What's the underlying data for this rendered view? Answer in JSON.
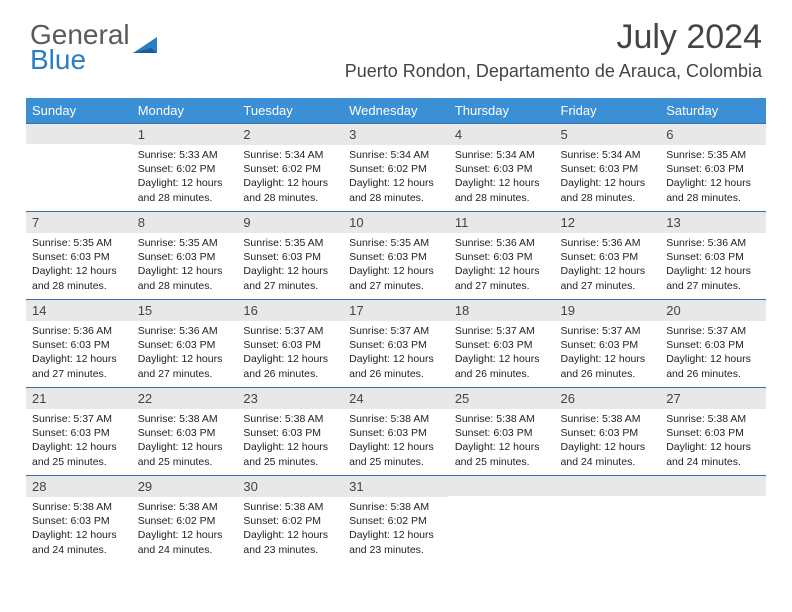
{
  "logo": {
    "text1": "General",
    "text2": "Blue"
  },
  "title": "July 2024",
  "location": "Puerto Rondon, Departamento de Arauca, Colombia",
  "colors": {
    "header_bg": "#3b8fd4",
    "daynum_bg": "#e8e8e8",
    "border": "#3b6fa5",
    "text": "#222222"
  },
  "day_headers": [
    "Sunday",
    "Monday",
    "Tuesday",
    "Wednesday",
    "Thursday",
    "Friday",
    "Saturday"
  ],
  "weeks": [
    [
      {
        "num": "",
        "sunrise": "",
        "sunset": "",
        "daylight": ""
      },
      {
        "num": "1",
        "sunrise": "Sunrise: 5:33 AM",
        "sunset": "Sunset: 6:02 PM",
        "daylight": "Daylight: 12 hours and 28 minutes."
      },
      {
        "num": "2",
        "sunrise": "Sunrise: 5:34 AM",
        "sunset": "Sunset: 6:02 PM",
        "daylight": "Daylight: 12 hours and 28 minutes."
      },
      {
        "num": "3",
        "sunrise": "Sunrise: 5:34 AM",
        "sunset": "Sunset: 6:02 PM",
        "daylight": "Daylight: 12 hours and 28 minutes."
      },
      {
        "num": "4",
        "sunrise": "Sunrise: 5:34 AM",
        "sunset": "Sunset: 6:03 PM",
        "daylight": "Daylight: 12 hours and 28 minutes."
      },
      {
        "num": "5",
        "sunrise": "Sunrise: 5:34 AM",
        "sunset": "Sunset: 6:03 PM",
        "daylight": "Daylight: 12 hours and 28 minutes."
      },
      {
        "num": "6",
        "sunrise": "Sunrise: 5:35 AM",
        "sunset": "Sunset: 6:03 PM",
        "daylight": "Daylight: 12 hours and 28 minutes."
      }
    ],
    [
      {
        "num": "7",
        "sunrise": "Sunrise: 5:35 AM",
        "sunset": "Sunset: 6:03 PM",
        "daylight": "Daylight: 12 hours and 28 minutes."
      },
      {
        "num": "8",
        "sunrise": "Sunrise: 5:35 AM",
        "sunset": "Sunset: 6:03 PM",
        "daylight": "Daylight: 12 hours and 28 minutes."
      },
      {
        "num": "9",
        "sunrise": "Sunrise: 5:35 AM",
        "sunset": "Sunset: 6:03 PM",
        "daylight": "Daylight: 12 hours and 27 minutes."
      },
      {
        "num": "10",
        "sunrise": "Sunrise: 5:35 AM",
        "sunset": "Sunset: 6:03 PM",
        "daylight": "Daylight: 12 hours and 27 minutes."
      },
      {
        "num": "11",
        "sunrise": "Sunrise: 5:36 AM",
        "sunset": "Sunset: 6:03 PM",
        "daylight": "Daylight: 12 hours and 27 minutes."
      },
      {
        "num": "12",
        "sunrise": "Sunrise: 5:36 AM",
        "sunset": "Sunset: 6:03 PM",
        "daylight": "Daylight: 12 hours and 27 minutes."
      },
      {
        "num": "13",
        "sunrise": "Sunrise: 5:36 AM",
        "sunset": "Sunset: 6:03 PM",
        "daylight": "Daylight: 12 hours and 27 minutes."
      }
    ],
    [
      {
        "num": "14",
        "sunrise": "Sunrise: 5:36 AM",
        "sunset": "Sunset: 6:03 PM",
        "daylight": "Daylight: 12 hours and 27 minutes."
      },
      {
        "num": "15",
        "sunrise": "Sunrise: 5:36 AM",
        "sunset": "Sunset: 6:03 PM",
        "daylight": "Daylight: 12 hours and 27 minutes."
      },
      {
        "num": "16",
        "sunrise": "Sunrise: 5:37 AM",
        "sunset": "Sunset: 6:03 PM",
        "daylight": "Daylight: 12 hours and 26 minutes."
      },
      {
        "num": "17",
        "sunrise": "Sunrise: 5:37 AM",
        "sunset": "Sunset: 6:03 PM",
        "daylight": "Daylight: 12 hours and 26 minutes."
      },
      {
        "num": "18",
        "sunrise": "Sunrise: 5:37 AM",
        "sunset": "Sunset: 6:03 PM",
        "daylight": "Daylight: 12 hours and 26 minutes."
      },
      {
        "num": "19",
        "sunrise": "Sunrise: 5:37 AM",
        "sunset": "Sunset: 6:03 PM",
        "daylight": "Daylight: 12 hours and 26 minutes."
      },
      {
        "num": "20",
        "sunrise": "Sunrise: 5:37 AM",
        "sunset": "Sunset: 6:03 PM",
        "daylight": "Daylight: 12 hours and 26 minutes."
      }
    ],
    [
      {
        "num": "21",
        "sunrise": "Sunrise: 5:37 AM",
        "sunset": "Sunset: 6:03 PM",
        "daylight": "Daylight: 12 hours and 25 minutes."
      },
      {
        "num": "22",
        "sunrise": "Sunrise: 5:38 AM",
        "sunset": "Sunset: 6:03 PM",
        "daylight": "Daylight: 12 hours and 25 minutes."
      },
      {
        "num": "23",
        "sunrise": "Sunrise: 5:38 AM",
        "sunset": "Sunset: 6:03 PM",
        "daylight": "Daylight: 12 hours and 25 minutes."
      },
      {
        "num": "24",
        "sunrise": "Sunrise: 5:38 AM",
        "sunset": "Sunset: 6:03 PM",
        "daylight": "Daylight: 12 hours and 25 minutes."
      },
      {
        "num": "25",
        "sunrise": "Sunrise: 5:38 AM",
        "sunset": "Sunset: 6:03 PM",
        "daylight": "Daylight: 12 hours and 25 minutes."
      },
      {
        "num": "26",
        "sunrise": "Sunrise: 5:38 AM",
        "sunset": "Sunset: 6:03 PM",
        "daylight": "Daylight: 12 hours and 24 minutes."
      },
      {
        "num": "27",
        "sunrise": "Sunrise: 5:38 AM",
        "sunset": "Sunset: 6:03 PM",
        "daylight": "Daylight: 12 hours and 24 minutes."
      }
    ],
    [
      {
        "num": "28",
        "sunrise": "Sunrise: 5:38 AM",
        "sunset": "Sunset: 6:03 PM",
        "daylight": "Daylight: 12 hours and 24 minutes."
      },
      {
        "num": "29",
        "sunrise": "Sunrise: 5:38 AM",
        "sunset": "Sunset: 6:02 PM",
        "daylight": "Daylight: 12 hours and 24 minutes."
      },
      {
        "num": "30",
        "sunrise": "Sunrise: 5:38 AM",
        "sunset": "Sunset: 6:02 PM",
        "daylight": "Daylight: 12 hours and 23 minutes."
      },
      {
        "num": "31",
        "sunrise": "Sunrise: 5:38 AM",
        "sunset": "Sunset: 6:02 PM",
        "daylight": "Daylight: 12 hours and 23 minutes."
      },
      {
        "num": "",
        "sunrise": "",
        "sunset": "",
        "daylight": ""
      },
      {
        "num": "",
        "sunrise": "",
        "sunset": "",
        "daylight": ""
      },
      {
        "num": "",
        "sunrise": "",
        "sunset": "",
        "daylight": ""
      }
    ]
  ]
}
